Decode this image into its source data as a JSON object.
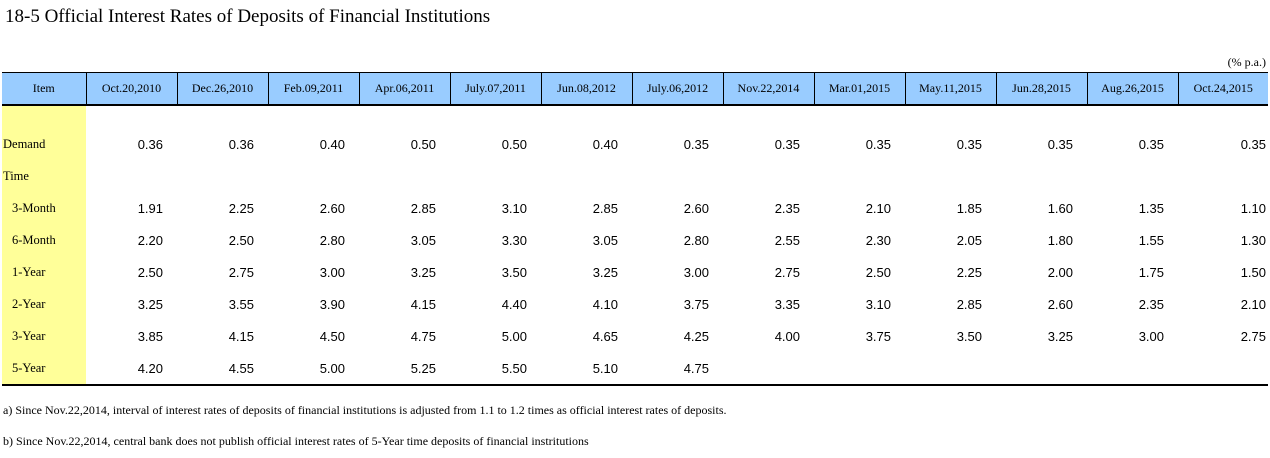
{
  "title": "18-5  Official Interest Rates of Deposits of Financial Institutions",
  "unit": "(% p.a.)",
  "table": {
    "item_header": "Item",
    "dates": [
      "Oct.20,2010",
      "Dec.26,2010",
      "Feb.09,2011",
      "Apr.06,2011",
      "July.07,2011",
      "Jun.08,2012",
      "July.06,2012",
      "Nov.22,2014",
      "Mar.01,2015",
      "May.11,2015",
      "Jun.28,2015",
      "Aug.26,2015",
      "Oct.24,2015"
    ],
    "rows": [
      {
        "label": "Demand",
        "values": [
          "0.36",
          "0.36",
          "0.40",
          "0.50",
          "0.50",
          "0.40",
          "0.35",
          "0.35",
          "0.35",
          "0.35",
          "0.35",
          "0.35",
          "0.35"
        ]
      },
      {
        "label": "Time",
        "values": [
          "",
          "",
          "",
          "",
          "",
          "",
          "",
          "",
          "",
          "",
          "",
          "",
          ""
        ]
      },
      {
        "label": "3-Month",
        "values": [
          "1.91",
          "2.25",
          "2.60",
          "2.85",
          "3.10",
          "2.85",
          "2.60",
          "2.35",
          "2.10",
          "1.85",
          "1.60",
          "1.35",
          "1.10"
        ]
      },
      {
        "label": "6-Month",
        "values": [
          "2.20",
          "2.50",
          "2.80",
          "3.05",
          "3.30",
          "3.05",
          "2.80",
          "2.55",
          "2.30",
          "2.05",
          "1.80",
          "1.55",
          "1.30"
        ]
      },
      {
        "label": "1-Year",
        "values": [
          "2.50",
          "2.75",
          "3.00",
          "3.25",
          "3.50",
          "3.25",
          "3.00",
          "2.75",
          "2.50",
          "2.25",
          "2.00",
          "1.75",
          "1.50"
        ]
      },
      {
        "label": "2-Year",
        "values": [
          "3.25",
          "3.55",
          "3.90",
          "4.15",
          "4.40",
          "4.10",
          "3.75",
          "3.35",
          "3.10",
          "2.85",
          "2.60",
          "2.35",
          "2.10"
        ]
      },
      {
        "label": "3-Year",
        "values": [
          "3.85",
          "4.15",
          "4.50",
          "4.75",
          "5.00",
          "4.65",
          "4.25",
          "4.00",
          "3.75",
          "3.50",
          "3.25",
          "3.00",
          "2.75"
        ]
      },
      {
        "label": "5-Year",
        "values": [
          "4.20",
          "4.55",
          "5.00",
          "5.25",
          "5.50",
          "5.10",
          "4.75",
          "",
          "",
          "",
          "",
          "",
          ""
        ]
      }
    ]
  },
  "notes": {
    "a": "a) Since Nov.22,2014, interval of interest rates of deposits of financial institutions is adjusted from 1.1 to 1.2 times as official interest rates of deposits.",
    "b": "b) Since Nov.22,2014, central bank does not publish official interest rates of 5-Year time deposits of financial instritutions"
  }
}
